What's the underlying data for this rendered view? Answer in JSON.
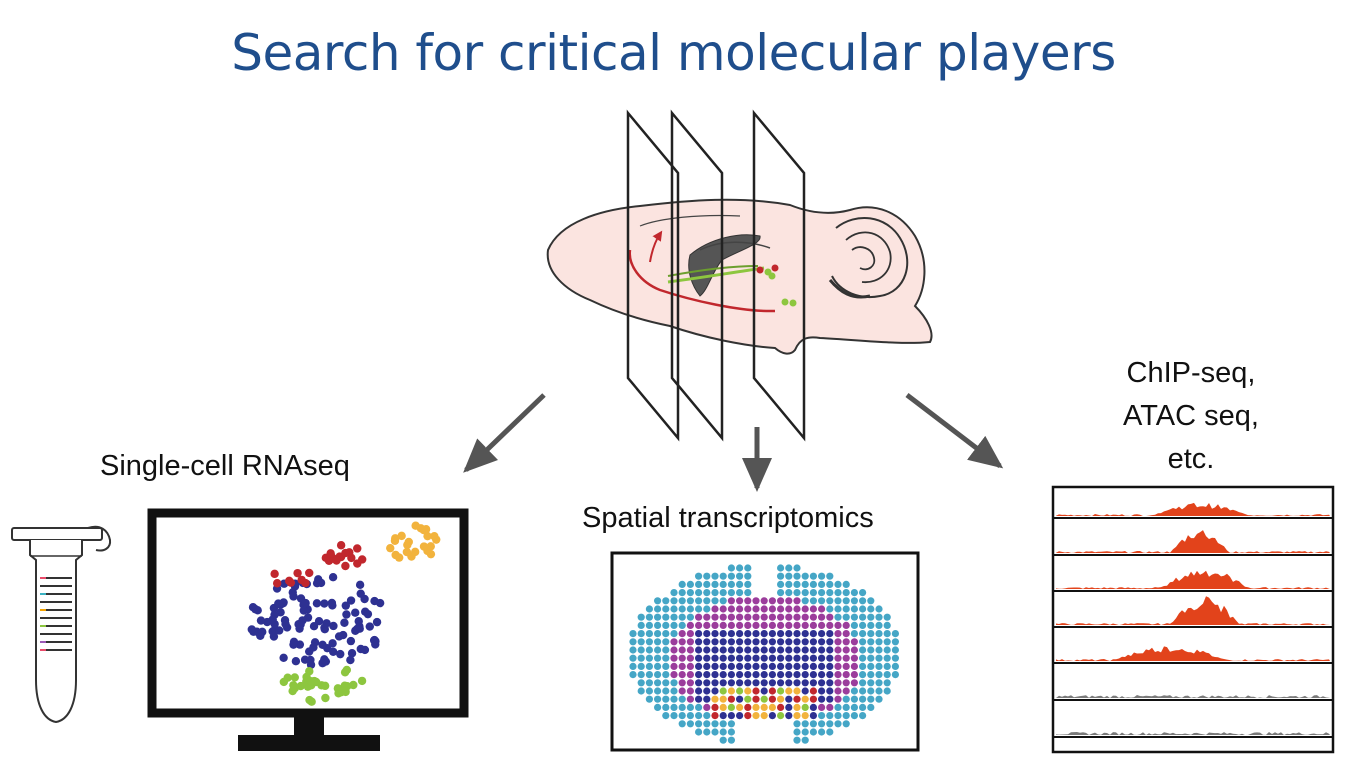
{
  "title": "Search for critical molecular players",
  "labels": {
    "single_cell": "Single-cell RNAseq",
    "spatial": "Spatial transcriptomics",
    "epigenomics": [
      "ChIP-seq,",
      "ATAC seq,",
      "etc."
    ]
  },
  "colors": {
    "title": "#1f4e8c",
    "brain_fill": "#fbe4e0",
    "cluster_blue": "#2e3192",
    "cluster_red": "#c1272d",
    "cluster_yellow": "#f2b33d",
    "cluster_green": "#8dc63f",
    "spatial_cyan": "#45a6c6",
    "spatial_magenta": "#9b3d9c",
    "track_orange": "#e2431b",
    "track_gray": "#7a7a7a",
    "arrow": "#555555"
  },
  "icons": [
    "sagittal-brain-icon",
    "coronal-section-plane-icon",
    "tube-icon",
    "monitor-icon",
    "coronal-spot-map-icon",
    "genome-track-panel-icon"
  ]
}
